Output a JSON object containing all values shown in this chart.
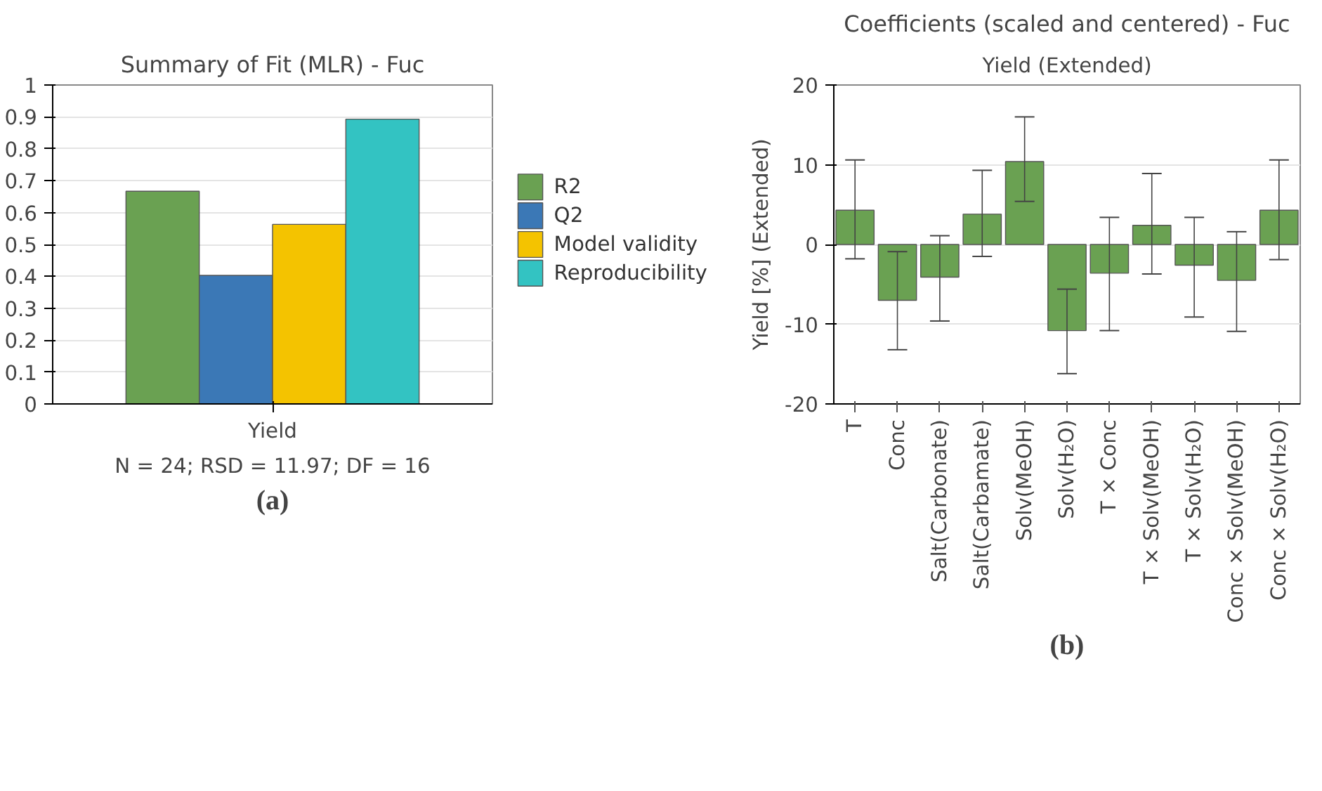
{
  "chart_data": [
    {
      "type": "bar",
      "title": "Summary of Fit (MLR) - Fuc",
      "xlabel": "N = 24; RSD = 11.97; DF = 16",
      "categories": [
        "Yield"
      ],
      "series": [
        {
          "name": "R2",
          "color": "#6aa152",
          "values": [
            0.667
          ]
        },
        {
          "name": "Q2",
          "color": "#3b78b6",
          "values": [
            0.403
          ]
        },
        {
          "name": "Model validity",
          "color": "#f4c300",
          "values": [
            0.563
          ]
        },
        {
          "name": "Reproducibility",
          "color": "#33c3c2",
          "values": [
            0.893
          ]
        }
      ],
      "ylim": [
        0,
        1
      ],
      "yticks": [
        0,
        0.1,
        0.2,
        0.3,
        0.4,
        0.5,
        0.6,
        0.7,
        0.8,
        0.9,
        1
      ],
      "grid": "y",
      "legend": "right",
      "annotations": [
        "(a)"
      ]
    },
    {
      "type": "bar",
      "title": "Coefficients (scaled and centered) - Fuc",
      "subtitle": "Yield (Extended)",
      "ylabel": "Yield [%] (Extended)",
      "categories": [
        "T",
        "Conc",
        "Salt(Carbonate)",
        "Salt(Carbamate)",
        "Solv(MeOH)",
        "Solv(H₂O)",
        "T × Conc",
        "T × Solv(MeOH)",
        "T × Solv(H₂O)",
        "Conc × Solv(MeOH)",
        "Conc × Solv(H₂O)"
      ],
      "values": [
        4.3,
        -7.0,
        -4.1,
        3.8,
        10.4,
        -10.8,
        -3.6,
        2.4,
        -2.6,
        -4.5,
        4.3
      ],
      "errors": [
        [
          -1.8,
          10.6
        ],
        [
          -13.2,
          -0.9
        ],
        [
          -9.6,
          1.1
        ],
        [
          -1.5,
          9.3
        ],
        [
          5.4,
          16.0
        ],
        [
          -16.2,
          -5.6
        ],
        [
          -10.8,
          3.4
        ],
        [
          -3.7,
          8.9
        ],
        [
          -9.1,
          3.4
        ],
        [
          -10.9,
          1.6
        ],
        [
          -1.9,
          10.6
        ]
      ],
      "color": "#6aa152",
      "ylim": [
        -20,
        20
      ],
      "yticks": [
        -20,
        -10,
        0,
        10,
        20
      ],
      "grid": "y",
      "annotations": [
        "(b)"
      ]
    }
  ]
}
